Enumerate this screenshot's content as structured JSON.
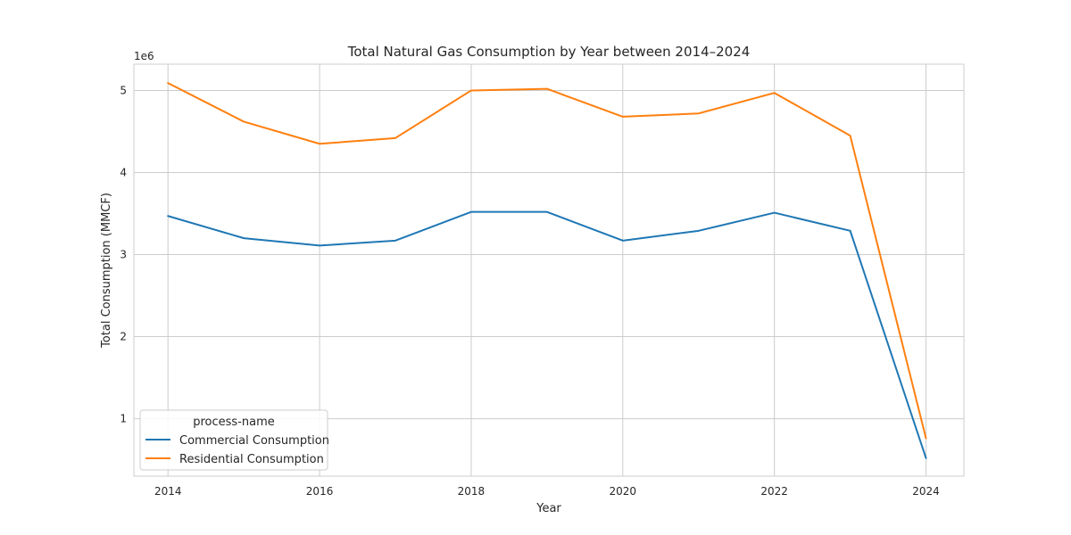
{
  "chart_data": {
    "type": "line",
    "title": "Total Natural Gas Consumption by Year between 2014–2024",
    "xlabel": "Year",
    "ylabel": "Total Consumption (MMCF)",
    "y_offset_label": "1e6",
    "x": [
      2014,
      2015,
      2016,
      2017,
      2018,
      2019,
      2020,
      2021,
      2022,
      2023,
      2024
    ],
    "x_ticks": [
      2014,
      2016,
      2018,
      2020,
      2022,
      2024
    ],
    "xlim": [
      2013.55,
      2024.5
    ],
    "y_ticks": [
      1,
      2,
      3,
      4,
      5
    ],
    "ylim": [
      0.3,
      5.32
    ],
    "y_scale": "1e6",
    "grid": true,
    "legend": {
      "title": "process-name",
      "placement": "lower-left"
    },
    "series": [
      {
        "name": "Commercial Consumption",
        "color": "#1f77b4",
        "values": [
          3.47,
          3.2,
          3.11,
          3.17,
          3.52,
          3.52,
          3.17,
          3.29,
          3.51,
          3.29,
          0.52
        ]
      },
      {
        "name": "Residential Consumption",
        "color": "#ff7f0e",
        "values": [
          5.09,
          4.62,
          4.35,
          4.42,
          5.0,
          5.02,
          4.68,
          4.72,
          4.97,
          4.45,
          0.76
        ]
      }
    ]
  }
}
